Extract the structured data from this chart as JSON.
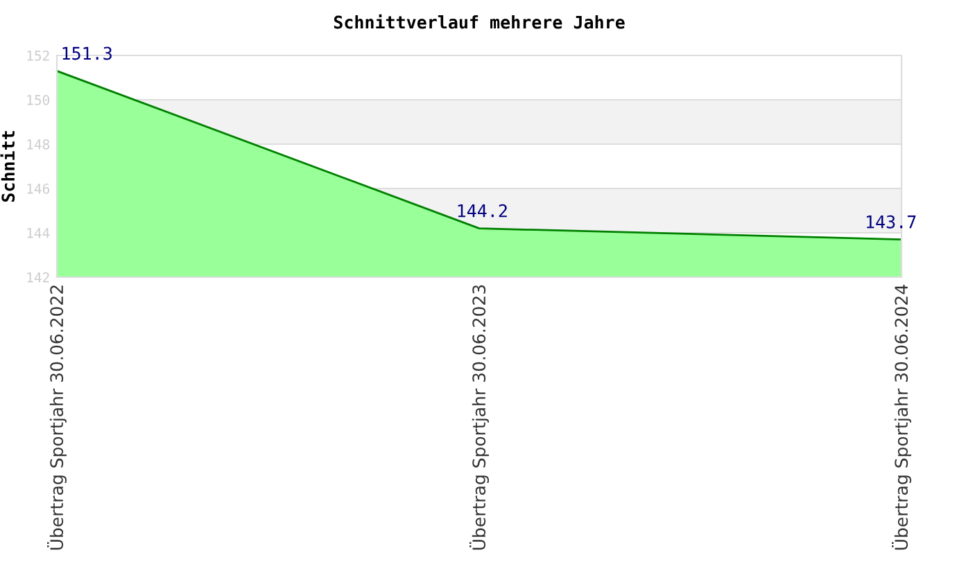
{
  "chart_data": {
    "type": "area",
    "title": "Schnittverlauf mehrere Jahre",
    "ylabel": "Schnitt",
    "categories": [
      "Übertrag Sportjahr 30.06.2022",
      "Übertrag Sportjahr 30.06.2023",
      "Übertrag Sportjahr 30.06.2024"
    ],
    "series": [
      {
        "color": "#99ff99",
        "values": [
          151.3,
          144.2,
          143.7
        ]
      }
    ],
    "data_labels": true,
    "ylim": [
      142,
      152
    ],
    "yticks": [
      142,
      144,
      146,
      148,
      150,
      152
    ],
    "bands": [
      {
        "axis": "y",
        "from": 148,
        "to": 150,
        "color": "#f2f2f2"
      },
      {
        "axis": "y",
        "from": 144,
        "to": 146,
        "color": "#f2f2f2"
      }
    ],
    "grid": "y"
  }
}
